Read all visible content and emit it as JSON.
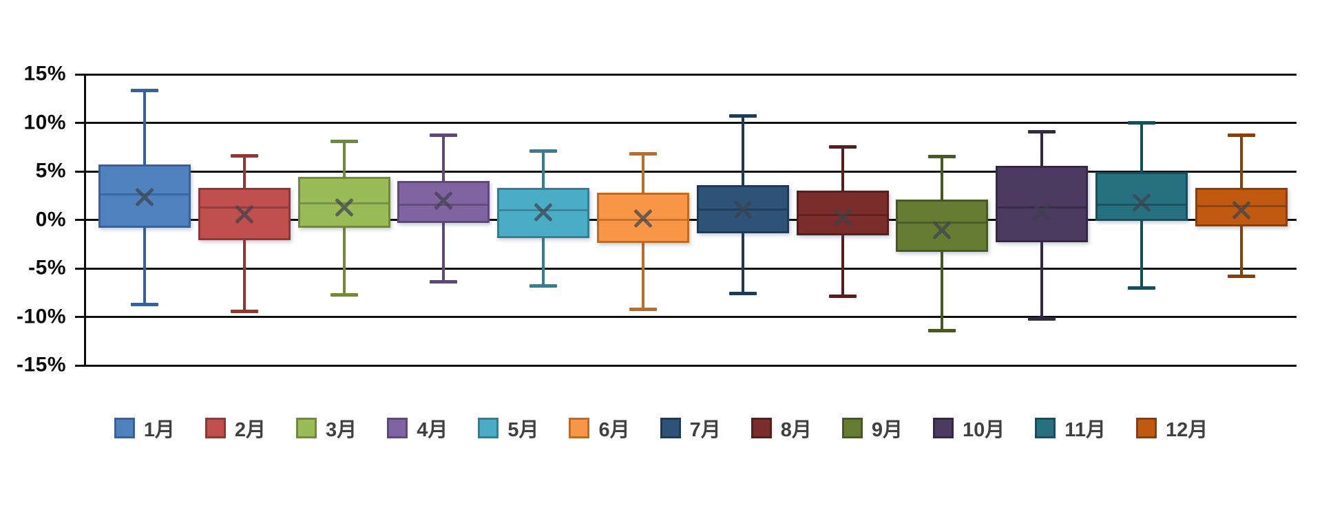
{
  "chart_data": {
    "type": "boxplot",
    "title": "",
    "unit": "%",
    "y_axis": {
      "min": -15,
      "max": 15,
      "step": 5,
      "tick_labels": [
        "15%",
        "10%",
        "5%",
        "0%",
        "-5%",
        "-10%",
        "-15%"
      ],
      "axis_color": "#0d0d0d"
    },
    "grid": {
      "horizontal": true,
      "color": "#0d0d0d"
    },
    "legend_position": "bottom",
    "marker_notes": "x marker = mean, horizontal line in box = median",
    "series": [
      {
        "name": "1月",
        "fill": "#4F81BD",
        "border": "#38619A",
        "whisker_low": -8.7,
        "q1": -0.8,
        "median": 2.7,
        "mean": 2.4,
        "q3": 5.7,
        "whisker_high": 13.3
      },
      {
        "name": "2月",
        "fill": "#C0504D",
        "border": "#8E3835",
        "whisker_low": -9.4,
        "q1": -2.1,
        "median": 1.4,
        "mean": 0.6,
        "q3": 3.3,
        "whisker_high": 6.6
      },
      {
        "name": "3月",
        "fill": "#9BBB59",
        "border": "#71893B",
        "whisker_low": -7.7,
        "q1": -0.8,
        "median": 1.8,
        "mean": 1.3,
        "q3": 4.4,
        "whisker_high": 8.1
      },
      {
        "name": "4月",
        "fill": "#8064A2",
        "border": "#5D4878",
        "whisker_low": -6.4,
        "q1": -0.3,
        "median": 1.7,
        "mean": 2.0,
        "q3": 4.0,
        "whisker_high": 8.7
      },
      {
        "name": "5月",
        "fill": "#4BACC6",
        "border": "#337E93",
        "whisker_low": -6.8,
        "q1": -1.9,
        "median": 1.1,
        "mean": 0.8,
        "q3": 3.3,
        "whisker_high": 7.1
      },
      {
        "name": "6月",
        "fill": "#F79646",
        "border": "#C06B22",
        "whisker_low": -9.2,
        "q1": -2.4,
        "median": 0.1,
        "mean": 0.2,
        "q3": 2.8,
        "whisker_high": 6.8
      },
      {
        "name": "7月",
        "fill": "#2E5377",
        "border": "#1F3A55",
        "whisker_low": -7.6,
        "q1": -1.4,
        "median": 1.2,
        "mean": 1.1,
        "q3": 3.6,
        "whisker_high": 10.7
      },
      {
        "name": "8月",
        "fill": "#7B2D2B",
        "border": "#551F1E",
        "whisker_low": -7.9,
        "q1": -1.6,
        "median": 0.6,
        "mean": 0.3,
        "q3": 3.0,
        "whisker_high": 7.5
      },
      {
        "name": "9月",
        "fill": "#667C33",
        "border": "#475823",
        "whisker_low": -11.4,
        "q1": -3.3,
        "median": -0.2,
        "mean": -1.0,
        "q3": 2.1,
        "whisker_high": 6.5
      },
      {
        "name": "10月",
        "fill": "#4C3A61",
        "border": "#342843",
        "whisker_low": -10.2,
        "q1": -2.3,
        "median": 1.4,
        "mean": 0.8,
        "q3": 5.6,
        "whisker_high": 9.1
      },
      {
        "name": "11月",
        "fill": "#26707F",
        "border": "#184E59",
        "whisker_low": -7.0,
        "q1": -0.1,
        "median": 1.7,
        "mean": 1.8,
        "q3": 4.9,
        "whisker_high": 10.0
      },
      {
        "name": "12月",
        "fill": "#C05A11",
        "border": "#87400C",
        "whisker_low": -5.8,
        "q1": -0.7,
        "median": 1.5,
        "mean": 1.0,
        "q3": 3.3,
        "whisker_high": 8.7
      }
    ]
  }
}
